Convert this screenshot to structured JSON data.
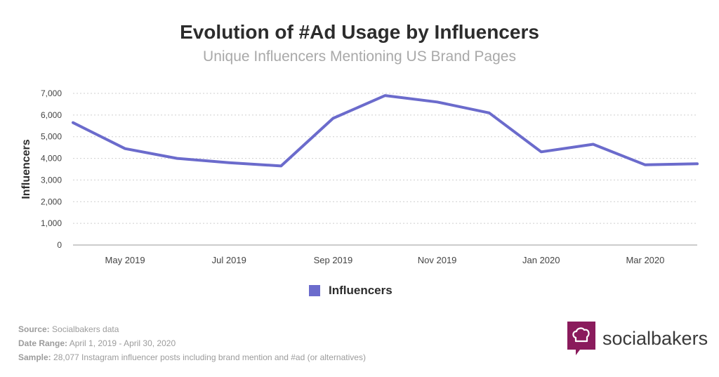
{
  "chart_data": {
    "type": "line",
    "title": "Evolution of #Ad Usage by Influencers",
    "subtitle": "Unique Influencers Mentioning US Brand Pages",
    "xlabel": "",
    "ylabel": "Influencers",
    "x": [
      "2019-04",
      "2019-05",
      "2019-06",
      "2019-07",
      "2019-08",
      "2019-09",
      "2019-10",
      "2019-11",
      "2019-12",
      "2020-01",
      "2020-02",
      "2020-03",
      "2020-04"
    ],
    "x_tick_labels": [
      "May 2019",
      "Jul 2019",
      "Sep 2019",
      "Nov 2019",
      "Jan 2020",
      "Mar 2020"
    ],
    "y_tick_labels": [
      "0",
      "1,000",
      "2,000",
      "3,000",
      "4,000",
      "5,000",
      "6,000",
      "7,000"
    ],
    "ylim": [
      0,
      7000
    ],
    "grid": true,
    "legend_position": "bottom",
    "series": [
      {
        "name": "Influencers",
        "color": "#6b6bcc",
        "values": [
          5650,
          4450,
          4000,
          3800,
          3650,
          5850,
          6900,
          6600,
          6100,
          4300,
          4650,
          3700,
          3750
        ]
      }
    ]
  },
  "footer": {
    "source_label": "Source:",
    "source_value": " Socialbakers data",
    "range_label": "Date Range:",
    "range_value": " April 1, 2019 - April 30, 2020",
    "sample_label": "Sample:",
    "sample_value": " 28,077 Instagram influencer posts including brand mention and #ad (or alternatives)"
  },
  "brand": {
    "name": "socialbakers",
    "logo_icon": "chef-hat-speech-bubble-icon",
    "color": "#8a1b5c"
  }
}
